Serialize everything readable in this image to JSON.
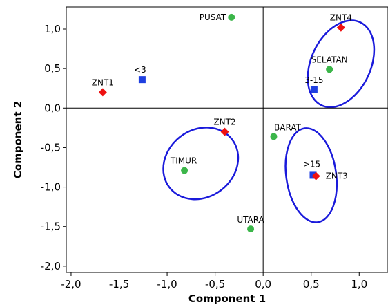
{
  "chart_data": {
    "type": "scatter",
    "xlabel": "Component 1",
    "ylabel": "Component 2",
    "xlim": [
      -2.05,
      1.3
    ],
    "ylim": [
      -2.08,
      1.28
    ],
    "x_ticks": [
      -2.0,
      -1.5,
      -1.0,
      -0.5,
      0.0,
      0.5,
      1.0
    ],
    "y_ticks": [
      1.0,
      0.5,
      0.0,
      -0.5,
      -1.0,
      -1.5,
      -2.0
    ],
    "x_tick_labels": [
      "-2,0",
      "-1,5",
      "-1,0",
      "-0,5",
      "0,0",
      "0,5",
      "1,0"
    ],
    "y_tick_labels": [
      "1,0",
      "0,5",
      "0,0",
      "-0,5",
      "-1,0",
      "-1,5",
      "-2,0"
    ],
    "reference_lines": {
      "x": 0,
      "y": 0
    },
    "grid": false,
    "series": [
      {
        "marker": "circle",
        "color": "#3cb64a",
        "points": [
          {
            "label": "PUSAT",
            "x": -0.33,
            "y": 1.15
          },
          {
            "label": "SELATAN",
            "x": 0.69,
            "y": 0.49
          },
          {
            "label": "BARAT",
            "x": 0.11,
            "y": -0.36
          },
          {
            "label": "TIMUR",
            "x": -0.82,
            "y": -0.79
          },
          {
            "label": "UTARA",
            "x": -0.13,
            "y": -1.53
          }
        ]
      },
      {
        "marker": "square",
        "color": "#1f3fe0",
        "points": [
          {
            "label": "<3",
            "x": -1.26,
            "y": 0.36
          },
          {
            "label": "3-15",
            "x": 0.53,
            "y": 0.23
          },
          {
            "label": ">15",
            "x": 0.52,
            "y": -0.85
          }
        ]
      },
      {
        "marker": "diamond",
        "color": "#ee1111",
        "points": [
          {
            "label": "ZNT1",
            "x": -1.67,
            "y": 0.2
          },
          {
            "label": "ZNT2",
            "x": -0.4,
            "y": -0.3
          },
          {
            "label": "ZNT3",
            "x": 0.55,
            "y": -0.86
          },
          {
            "label": "ZNT4",
            "x": 0.81,
            "y": 1.02
          }
        ]
      }
    ],
    "ellipses": [
      {
        "cx": 0.81,
        "cy": 0.56,
        "rx": 0.31,
        "ry": 0.58,
        "rotation": 25,
        "color": "#1a1adb"
      },
      {
        "cx": -0.65,
        "cy": -0.7,
        "rx": 0.35,
        "ry": 0.5,
        "rotation": 53,
        "color": "#1a1adb"
      },
      {
        "cx": 0.5,
        "cy": -0.85,
        "rx": 0.26,
        "ry": 0.6,
        "rotation": -8,
        "color": "#1a1adb"
      }
    ]
  }
}
